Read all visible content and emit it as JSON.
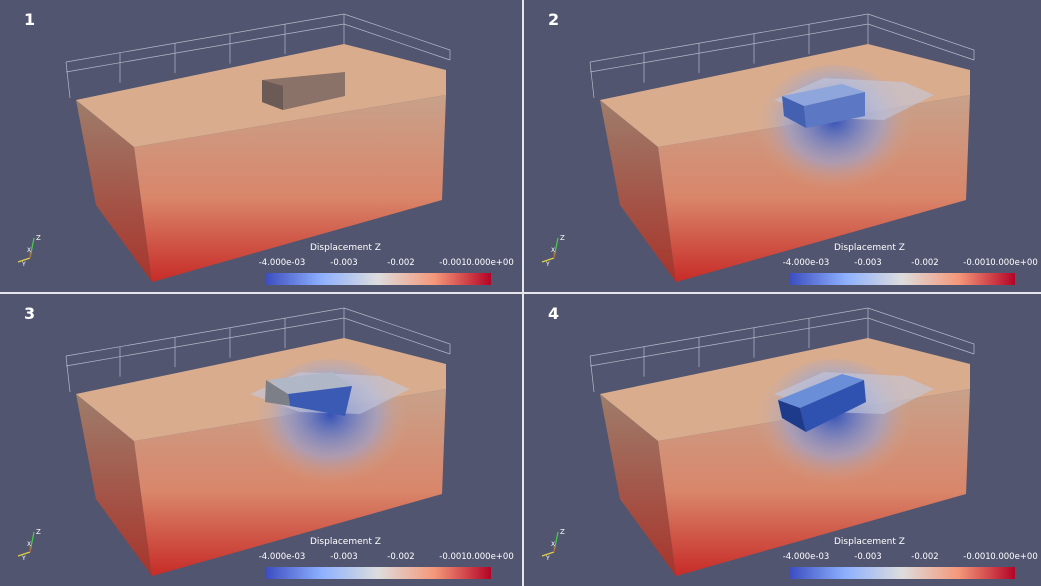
{
  "panels": [
    {
      "number": "1",
      "stage": "initial"
    },
    {
      "number": "2",
      "stage": "embedded"
    },
    {
      "number": "3",
      "stage": "tilted-left"
    },
    {
      "number": "4",
      "stage": "tilted-right"
    }
  ],
  "colorbar": {
    "title": "Displacement Z",
    "ticks": [
      "-4.000e-03",
      "-0.003",
      "-0.002",
      "-0.001",
      "0.000e+00"
    ],
    "colormap": {
      "low": "#3b4cc0",
      "mid": "#dddddd",
      "high": "#b40426"
    }
  },
  "colors": {
    "background": "#525570",
    "divider": "#e6e6ea",
    "surface": "#d9ac8e",
    "front_face_top": "#c8a18a",
    "front_face_bottom": "#c72b28",
    "side_face": "#8e6f62",
    "indenter": "#6e8ac8"
  }
}
